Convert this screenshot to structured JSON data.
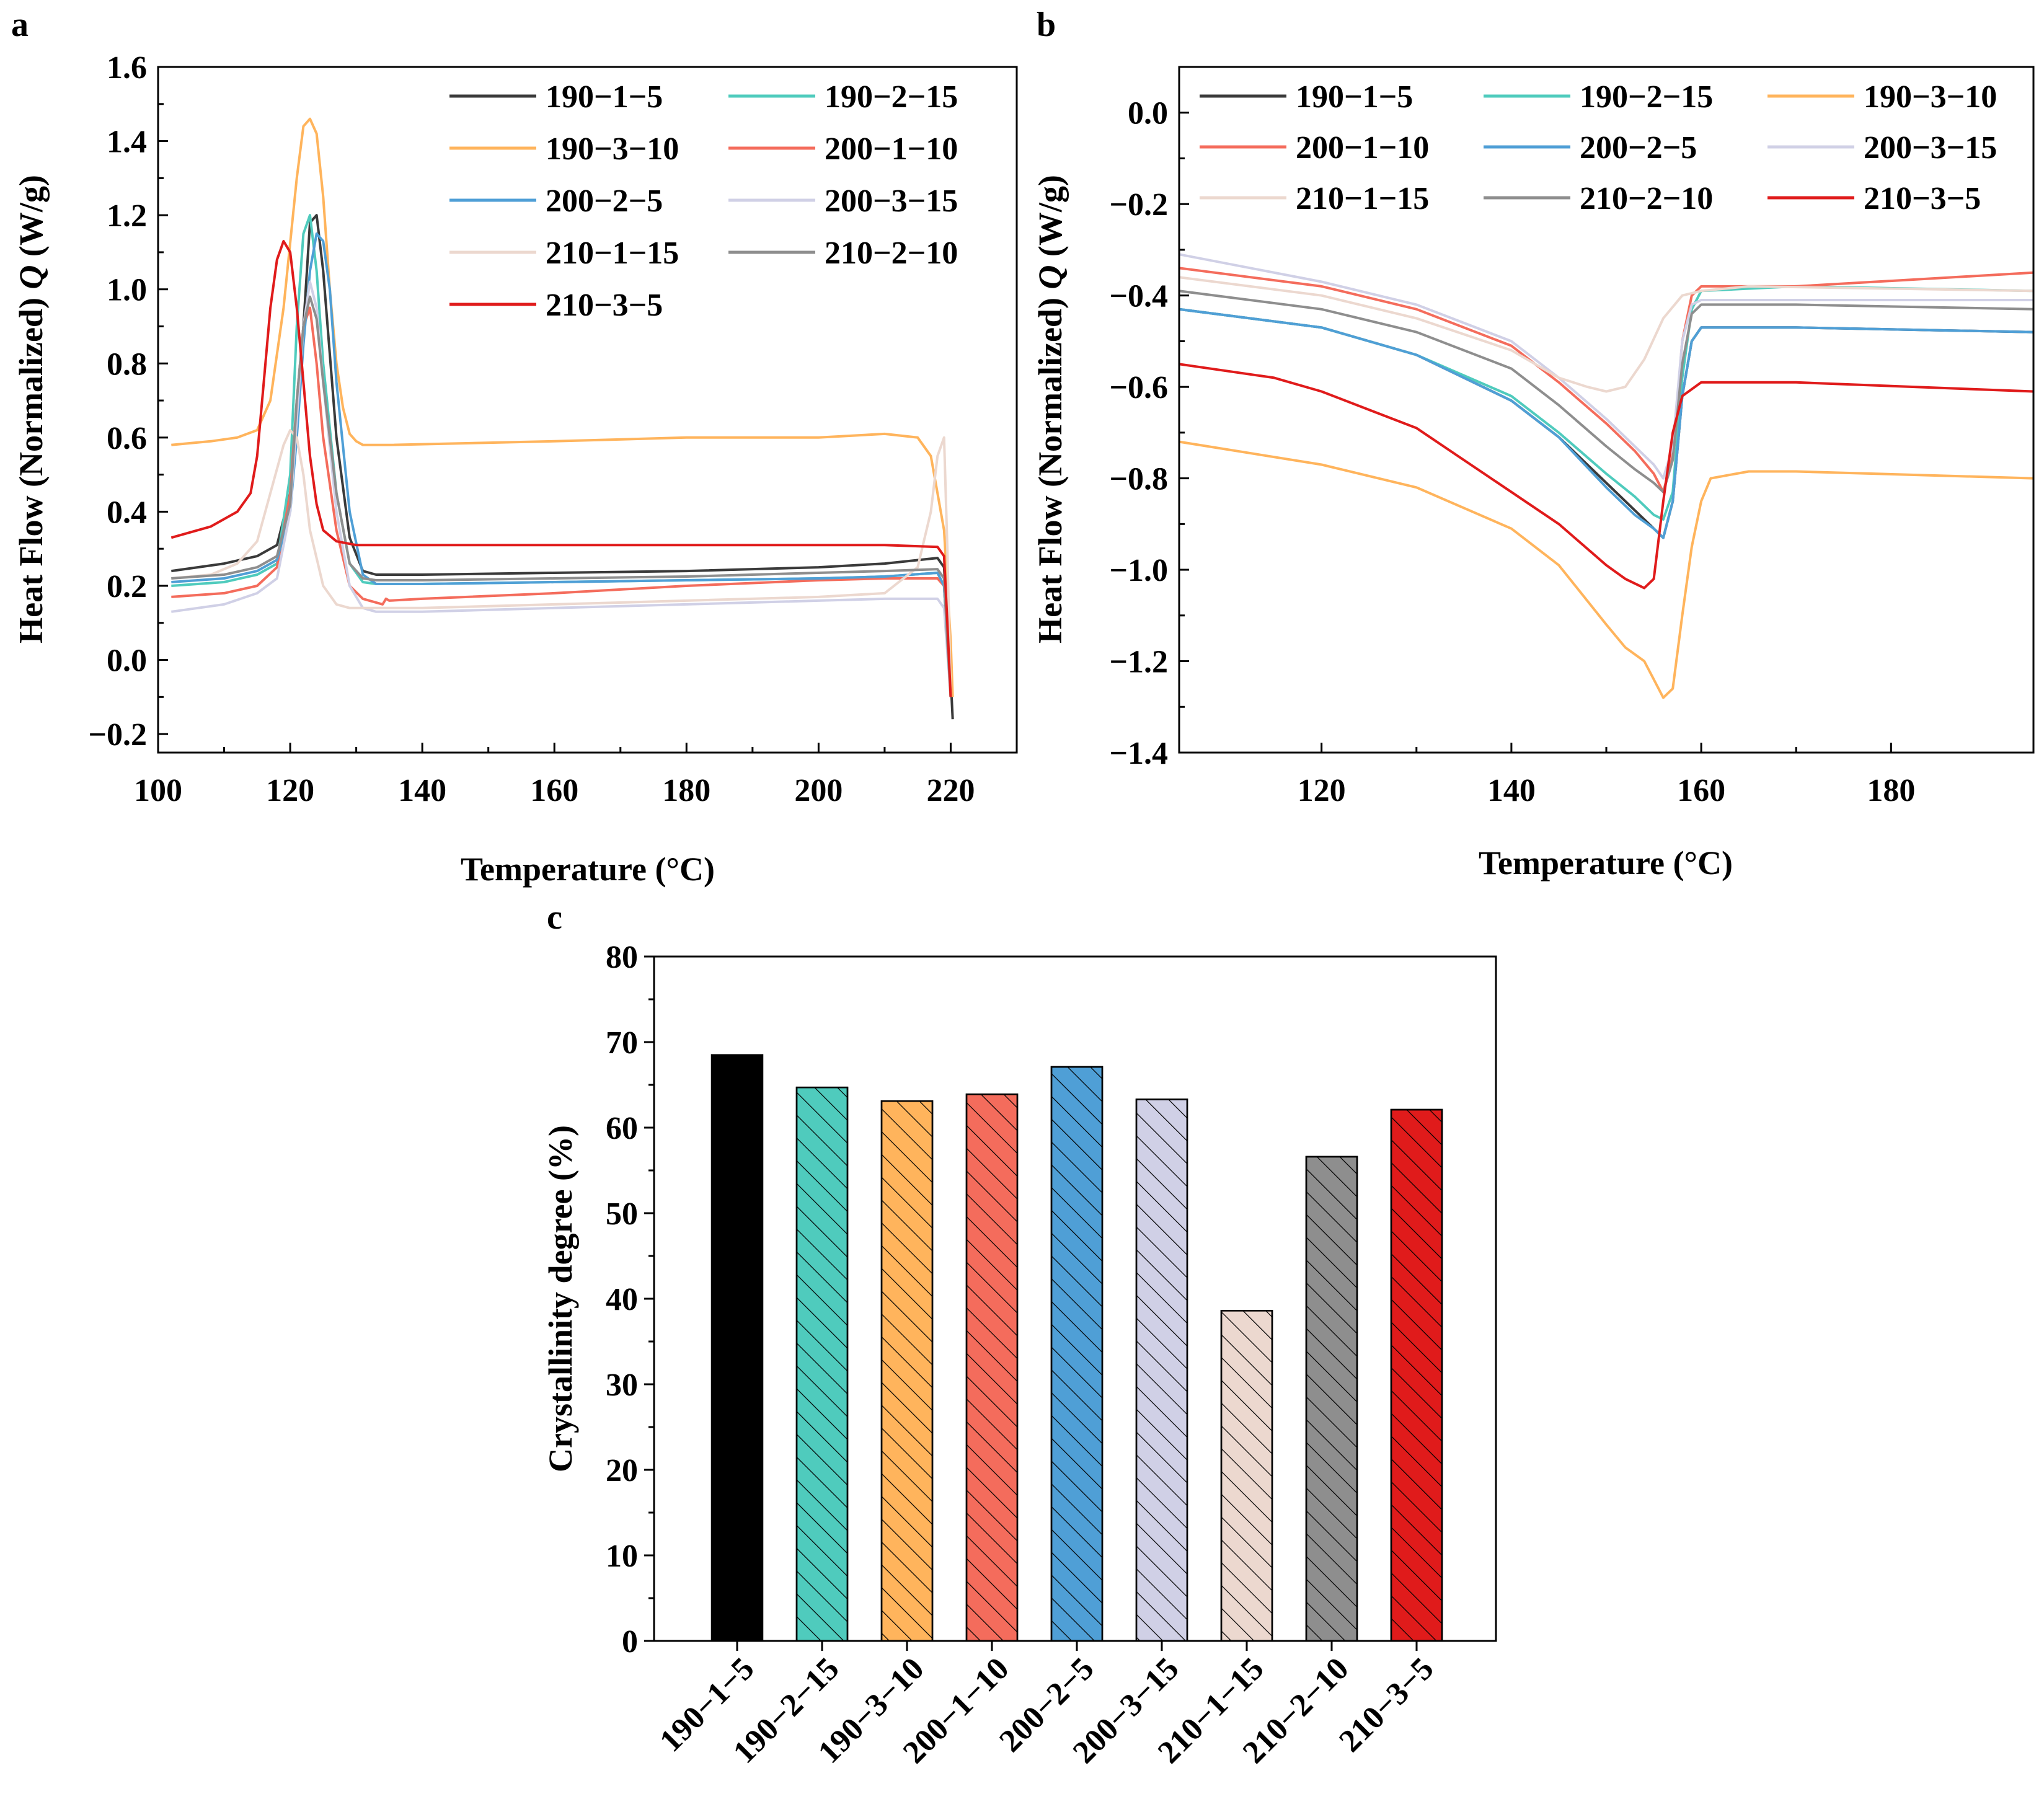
{
  "series_meta": [
    {
      "name": "190−1−5",
      "color": "#3a3a3a"
    },
    {
      "name": "190−2−15",
      "color": "#4fcbbd"
    },
    {
      "name": "190−3−10",
      "color": "#ffb45c"
    },
    {
      "name": "200−1−10",
      "color": "#f46c5c"
    },
    {
      "name": "200−2−5",
      "color": "#4f9fd6"
    },
    {
      "name": "200−3−15",
      "color": "#d0d0e6"
    },
    {
      "name": "210−1−15",
      "color": "#ecd8cf"
    },
    {
      "name": "210−2−10",
      "color": "#8e8e8e"
    },
    {
      "name": "210−3−5",
      "color": "#e01b1b"
    }
  ],
  "chart_data": [
    {
      "panel": "a",
      "type": "line",
      "xlabel": "Temperature (°C)",
      "ylabel": "Heat Flow (Normalized) Q (W/g)",
      "xlim": [
        100,
        230
      ],
      "ylim": [
        -0.25,
        1.6
      ],
      "xticks": [
        100,
        120,
        140,
        160,
        180,
        200,
        220
      ],
      "yticks": [
        -0.2,
        0.0,
        0.2,
        0.4,
        0.6,
        0.8,
        1.0,
        1.2,
        1.4,
        1.6
      ],
      "legend_position": "top-right",
      "series": [
        {
          "name": "190−1−5",
          "x": [
            102,
            110,
            115,
            118,
            120,
            122,
            123,
            124,
            125,
            127,
            129,
            131,
            133,
            140,
            160,
            180,
            200,
            210,
            218,
            219,
            219.5,
            220,
            220.3
          ],
          "y": [
            0.24,
            0.26,
            0.28,
            0.31,
            0.45,
            0.9,
            1.18,
            1.2,
            1.05,
            0.6,
            0.33,
            0.24,
            0.23,
            0.23,
            0.235,
            0.24,
            0.25,
            0.26,
            0.275,
            0.25,
            0.1,
            -0.05,
            -0.16
          ]
        },
        {
          "name": "190−2−15",
          "x": [
            102,
            110,
            115,
            118,
            120,
            121,
            122,
            123,
            124,
            125,
            127,
            129,
            131,
            133,
            140,
            160,
            180,
            200,
            210,
            218,
            219,
            219.5,
            220
          ],
          "y": [
            0.2,
            0.21,
            0.23,
            0.26,
            0.5,
            0.9,
            1.15,
            1.2,
            1.05,
            0.8,
            0.45,
            0.26,
            0.21,
            0.205,
            0.205,
            0.21,
            0.215,
            0.22,
            0.225,
            0.235,
            0.2,
            0.05,
            -0.1
          ]
        },
        {
          "name": "190−3−10",
          "x": [
            102,
            108,
            112,
            115,
            117,
            119,
            121,
            122,
            123,
            124,
            125,
            126,
            127,
            128,
            129,
            130,
            131,
            135,
            160,
            180,
            200,
            210,
            215,
            217,
            218,
            219,
            219.5,
            220,
            220.3
          ],
          "y": [
            0.58,
            0.59,
            0.6,
            0.62,
            0.7,
            0.95,
            1.3,
            1.44,
            1.46,
            1.42,
            1.25,
            1.0,
            0.8,
            0.68,
            0.61,
            0.59,
            0.58,
            0.58,
            0.59,
            0.6,
            0.6,
            0.61,
            0.6,
            0.55,
            0.45,
            0.35,
            0.2,
            0.05,
            -0.1
          ]
        },
        {
          "name": "200−1−10",
          "x": [
            102,
            110,
            115,
            118,
            120,
            121,
            122,
            123,
            124,
            125,
            127,
            129,
            131,
            132,
            133,
            134,
            134.5,
            135,
            140,
            160,
            180,
            200,
            210,
            218,
            219,
            219.5,
            220
          ],
          "y": [
            0.17,
            0.18,
            0.2,
            0.25,
            0.45,
            0.7,
            0.9,
            0.95,
            0.8,
            0.6,
            0.35,
            0.2,
            0.165,
            0.16,
            0.155,
            0.15,
            0.165,
            0.16,
            0.165,
            0.18,
            0.2,
            0.215,
            0.22,
            0.22,
            0.2,
            0.05,
            -0.1
          ]
        },
        {
          "name": "200−2−5",
          "x": [
            102,
            110,
            115,
            118,
            120,
            121,
            122,
            123,
            124,
            125,
            126,
            127,
            129,
            131,
            133,
            140,
            160,
            180,
            200,
            210,
            218,
            219,
            219.5,
            220
          ],
          "y": [
            0.21,
            0.22,
            0.24,
            0.27,
            0.4,
            0.6,
            0.85,
            1.05,
            1.15,
            1.13,
            1.0,
            0.75,
            0.4,
            0.23,
            0.205,
            0.205,
            0.21,
            0.215,
            0.22,
            0.225,
            0.235,
            0.2,
            0.05,
            -0.1
          ]
        },
        {
          "name": "200−3−15",
          "x": [
            102,
            110,
            115,
            118,
            120,
            121,
            122,
            123,
            124,
            125,
            127,
            129,
            131,
            133,
            140,
            160,
            180,
            200,
            210,
            218,
            219,
            219.5,
            220
          ],
          "y": [
            0.13,
            0.15,
            0.18,
            0.22,
            0.4,
            0.65,
            0.9,
            1.02,
            0.95,
            0.75,
            0.4,
            0.2,
            0.14,
            0.13,
            0.13,
            0.14,
            0.15,
            0.16,
            0.165,
            0.165,
            0.14,
            0.02,
            -0.1
          ]
        },
        {
          "name": "210−1−15",
          "x": [
            102,
            108,
            112,
            115,
            117,
            119,
            120,
            121,
            122,
            123,
            125,
            127,
            129,
            131,
            133,
            140,
            160,
            180,
            200,
            210,
            215,
            217,
            218,
            219,
            219.5,
            220
          ],
          "y": [
            0.22,
            0.23,
            0.26,
            0.32,
            0.45,
            0.58,
            0.62,
            0.6,
            0.5,
            0.35,
            0.2,
            0.15,
            0.14,
            0.14,
            0.14,
            0.14,
            0.15,
            0.16,
            0.17,
            0.18,
            0.25,
            0.4,
            0.55,
            0.6,
            0.3,
            -0.1
          ]
        },
        {
          "name": "210−2−10",
          "x": [
            102,
            110,
            115,
            118,
            120,
            121,
            122,
            123,
            124,
            125,
            127,
            129,
            131,
            133,
            140,
            160,
            180,
            200,
            210,
            218,
            219,
            219.5,
            220
          ],
          "y": [
            0.22,
            0.23,
            0.25,
            0.28,
            0.42,
            0.7,
            0.9,
            0.98,
            0.92,
            0.75,
            0.45,
            0.26,
            0.22,
            0.215,
            0.215,
            0.22,
            0.225,
            0.235,
            0.24,
            0.245,
            0.22,
            0.05,
            -0.1
          ]
        },
        {
          "name": "210−3−5",
          "x": [
            102,
            108,
            112,
            114,
            115,
            116,
            117,
            118,
            119,
            120,
            121,
            122,
            123,
            124,
            125,
            127,
            130,
            140,
            160,
            180,
            200,
            210,
            218,
            219,
            219.5,
            220
          ],
          "y": [
            0.33,
            0.36,
            0.4,
            0.45,
            0.55,
            0.75,
            0.95,
            1.08,
            1.13,
            1.1,
            0.95,
            0.75,
            0.55,
            0.42,
            0.35,
            0.32,
            0.31,
            0.31,
            0.31,
            0.31,
            0.31,
            0.31,
            0.305,
            0.28,
            0.1,
            -0.1
          ]
        }
      ]
    },
    {
      "panel": "b",
      "type": "line",
      "xlabel": "Temperature (°C)",
      "ylabel": "Heat Flow (Normalized) Q (W/g)",
      "xlim": [
        105,
        195
      ],
      "ylim": [
        -1.4,
        0.1
      ],
      "xticks": [
        120,
        140,
        160,
        180
      ],
      "yticks": [
        0.0,
        -0.2,
        -0.4,
        -0.6,
        -0.8,
        -1.0,
        -1.2,
        -1.4
      ],
      "legend_position": "top",
      "series": [
        {
          "name": "190−1−5",
          "x": [
            105,
            120,
            130,
            140,
            145,
            150,
            153,
            155,
            156,
            157,
            158,
            159,
            160,
            170,
            195
          ],
          "y": [
            -0.43,
            -0.47,
            -0.53,
            -0.63,
            -0.71,
            -0.81,
            -0.87,
            -0.91,
            -0.93,
            -0.85,
            -0.62,
            -0.5,
            -0.47,
            -0.47,
            -0.48
          ]
        },
        {
          "name": "190−2−15",
          "x": [
            105,
            120,
            130,
            140,
            145,
            150,
            153,
            155,
            156,
            157,
            158,
            159,
            160,
            170,
            195
          ],
          "y": [
            -0.43,
            -0.47,
            -0.53,
            -0.62,
            -0.7,
            -0.79,
            -0.84,
            -0.88,
            -0.89,
            -0.83,
            -0.58,
            -0.43,
            -0.39,
            -0.38,
            -0.39
          ]
        },
        {
          "name": "190−3−10",
          "x": [
            105,
            120,
            130,
            140,
            145,
            150,
            152,
            154,
            155,
            156,
            157,
            158,
            159,
            160,
            161,
            165,
            170,
            195
          ],
          "y": [
            -0.72,
            -0.77,
            -0.82,
            -0.91,
            -0.99,
            -1.12,
            -1.17,
            -1.2,
            -1.24,
            -1.28,
            -1.26,
            -1.1,
            -0.95,
            -0.85,
            -0.8,
            -0.785,
            -0.785,
            -0.8
          ]
        },
        {
          "name": "200−1−10",
          "x": [
            105,
            120,
            130,
            140,
            145,
            150,
            153,
            155,
            156,
            157,
            158,
            159,
            160,
            170,
            195
          ],
          "y": [
            -0.34,
            -0.38,
            -0.43,
            -0.51,
            -0.59,
            -0.68,
            -0.74,
            -0.79,
            -0.83,
            -0.75,
            -0.5,
            -0.4,
            -0.38,
            -0.38,
            -0.35
          ]
        },
        {
          "name": "200−2−5",
          "x": [
            105,
            120,
            130,
            140,
            145,
            150,
            153,
            155,
            156,
            157,
            158,
            159,
            160,
            170,
            195
          ],
          "y": [
            -0.43,
            -0.47,
            -0.53,
            -0.63,
            -0.71,
            -0.82,
            -0.88,
            -0.91,
            -0.93,
            -0.85,
            -0.62,
            -0.5,
            -0.47,
            -0.47,
            -0.48
          ]
        },
        {
          "name": "200−3−15",
          "x": [
            105,
            120,
            130,
            140,
            145,
            150,
            153,
            155,
            156,
            157,
            158,
            159,
            160,
            170,
            195
          ],
          "y": [
            -0.31,
            -0.37,
            -0.42,
            -0.5,
            -0.58,
            -0.67,
            -0.73,
            -0.77,
            -0.8,
            -0.73,
            -0.5,
            -0.42,
            -0.41,
            -0.41,
            -0.41
          ]
        },
        {
          "name": "210−1−15",
          "x": [
            105,
            120,
            130,
            140,
            145,
            148,
            150,
            152,
            154,
            156,
            158,
            160,
            165,
            195
          ],
          "y": [
            -0.36,
            -0.4,
            -0.45,
            -0.52,
            -0.58,
            -0.6,
            -0.61,
            -0.6,
            -0.54,
            -0.45,
            -0.4,
            -0.39,
            -0.38,
            -0.39
          ]
        },
        {
          "name": "210−2−10",
          "x": [
            105,
            120,
            130,
            140,
            145,
            150,
            153,
            155,
            156,
            157,
            158,
            159,
            160,
            170,
            195
          ],
          "y": [
            -0.39,
            -0.43,
            -0.48,
            -0.56,
            -0.64,
            -0.73,
            -0.78,
            -0.81,
            -0.83,
            -0.76,
            -0.55,
            -0.44,
            -0.42,
            -0.42,
            -0.43
          ]
        },
        {
          "name": "210−3−5",
          "x": [
            105,
            115,
            120,
            125,
            130,
            135,
            140,
            145,
            150,
            152,
            154,
            155,
            156,
            157,
            158,
            160,
            170,
            195
          ],
          "y": [
            -0.55,
            -0.58,
            -0.61,
            -0.65,
            -0.69,
            -0.76,
            -0.83,
            -0.9,
            -0.99,
            -1.02,
            -1.04,
            -1.02,
            -0.85,
            -0.7,
            -0.62,
            -0.59,
            -0.59,
            -0.61
          ]
        }
      ]
    },
    {
      "panel": "c",
      "type": "bar",
      "ylabel": "Crystallinity degree (%)",
      "ylim": [
        0,
        80
      ],
      "yticks": [
        0,
        10,
        20,
        30,
        40,
        50,
        60,
        70,
        80
      ],
      "categories": [
        "190−1−5",
        "190−2−15",
        "190−3−10",
        "200−1−10",
        "200−2−5",
        "200−3−15",
        "210−1−15",
        "210−2−10",
        "210−3−5"
      ],
      "values": [
        68.5,
        64.7,
        63.1,
        63.9,
        67.1,
        63.3,
        38.6,
        56.6,
        62.1
      ],
      "colors": [
        "#000000",
        "#4fcbbd",
        "#ffb45c",
        "#f46c5c",
        "#4f9fd6",
        "#d0d0e6",
        "#ecd8cf",
        "#8e8e8e",
        "#e01b1b"
      ]
    }
  ]
}
